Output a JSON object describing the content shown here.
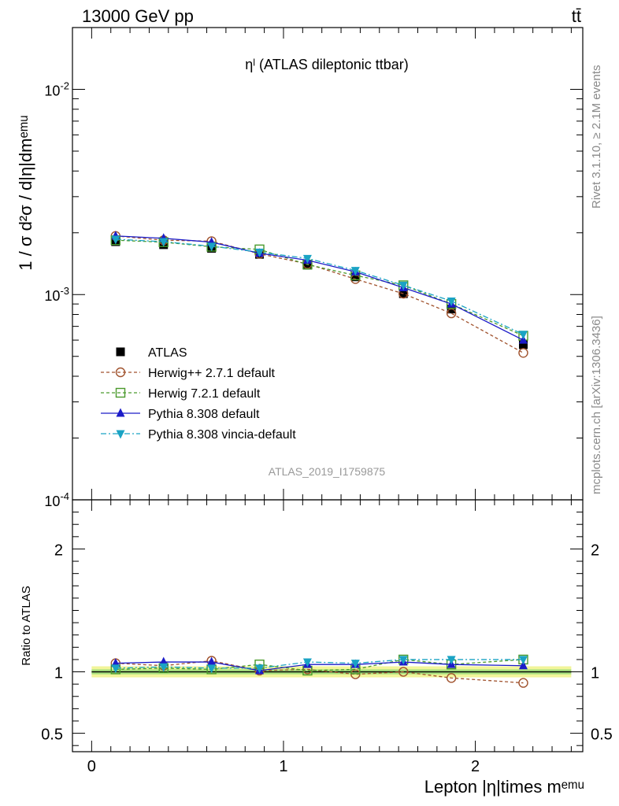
{
  "header": {
    "process": "13000 GeV pp",
    "channel": "tt̄"
  },
  "side_labels": {
    "rivet": "Rivet 3.1.10, ≥ 2.1M events",
    "source": "mcplots.cern.ch [arXiv:1306.3436]"
  },
  "colors": {
    "data": "#000000",
    "herwigpp": "#a0522d",
    "herwig7": "#4a9a2c",
    "pythia": "#1c1cc8",
    "vincia": "#1aa3c4",
    "band_outer": "#f2f59a",
    "band_inner": "#a7e07e"
  },
  "chart_data": [
    {
      "type": "line",
      "panel": "main",
      "title": "ηˡ (ATLAS dileptonic ttbar)",
      "analysis_label": "ATLAS_2019_I1759875",
      "ylabel": "1 / σ d²σ / d|η|dmᵉᵐᵘ",
      "xlabel": "Lepton |η|times mᵉᵐᵘ",
      "yscale": "log",
      "xlim": [
        -0.1,
        2.56
      ],
      "ylim": [
        0.0001,
        0.02
      ],
      "yticks": [
        {
          "base": "10",
          "exp": "-4",
          "value": 0.0001
        },
        {
          "base": "10",
          "exp": "-3",
          "value": 0.001
        },
        {
          "base": "10",
          "exp": "-2",
          "value": 0.01
        }
      ],
      "xticks": [
        "0",
        "1",
        "2"
      ],
      "legend_position": "lower-left",
      "x": [
        0.125,
        0.375,
        0.625,
        0.875,
        1.125,
        1.375,
        1.625,
        1.875,
        2.25
      ],
      "series": [
        {
          "name": "ATLAS",
          "marker": "square-filled",
          "values": [
            0.00181,
            0.00175,
            0.00168,
            0.00157,
            0.00139,
            0.00122,
            0.00101,
            0.00085,
            0.00057
          ]
        },
        {
          "name": "Herwig++ 2.7.1 default",
          "marker": "circle-open",
          "line": "dashed",
          "values": [
            0.00193,
            0.00184,
            0.00182,
            0.00158,
            0.00141,
            0.00119,
            0.00101,
            0.00081,
            0.00052
          ]
        },
        {
          "name": "Herwig 7.2.1 default",
          "marker": "square-open",
          "line": "dashed",
          "values": [
            0.00184,
            0.0018,
            0.00171,
            0.00166,
            0.0014,
            0.00124,
            0.00111,
            0.0009,
            0.00063
          ]
        },
        {
          "name": "Pythia 8.308 default",
          "marker": "triangle-up",
          "line": "solid",
          "values": [
            0.00193,
            0.00188,
            0.0018,
            0.00159,
            0.00147,
            0.00129,
            0.00108,
            0.0009,
            0.0006
          ]
        },
        {
          "name": "Pythia 8.308 vincia-default",
          "marker": "triangle-down",
          "line": "dashdot",
          "values": [
            0.00186,
            0.00181,
            0.00172,
            0.00161,
            0.0015,
            0.00131,
            0.00111,
            0.00093,
            0.00064
          ]
        }
      ]
    },
    {
      "type": "line",
      "panel": "ratio",
      "ylabel": "Ratio to ATLAS",
      "ylim": [
        0.35,
        2.4
      ],
      "yticks": [
        "0.5",
        "1",
        "2"
      ],
      "x": [
        0.125,
        0.375,
        0.625,
        0.875,
        1.125,
        1.375,
        1.625,
        1.875,
        2.25
      ],
      "band": {
        "inner": 0.02,
        "outer": 0.045
      },
      "series": [
        {
          "name": "Herwig++ 2.7.1 default",
          "values": [
            1.07,
            1.05,
            1.09,
            1.01,
            1.02,
            0.98,
            1.0,
            0.95,
            0.91
          ]
        },
        {
          "name": "Herwig 7.2.1 default",
          "values": [
            1.02,
            1.03,
            1.02,
            1.06,
            1.01,
            1.02,
            1.1,
            1.06,
            1.1
          ]
        },
        {
          "name": "Pythia 8.308 default",
          "values": [
            1.07,
            1.08,
            1.08,
            1.01,
            1.06,
            1.06,
            1.08,
            1.06,
            1.05
          ]
        },
        {
          "name": "Pythia 8.308 vincia-default",
          "values": [
            1.03,
            1.04,
            1.03,
            1.03,
            1.08,
            1.07,
            1.1,
            1.1,
            1.1
          ]
        }
      ]
    }
  ]
}
